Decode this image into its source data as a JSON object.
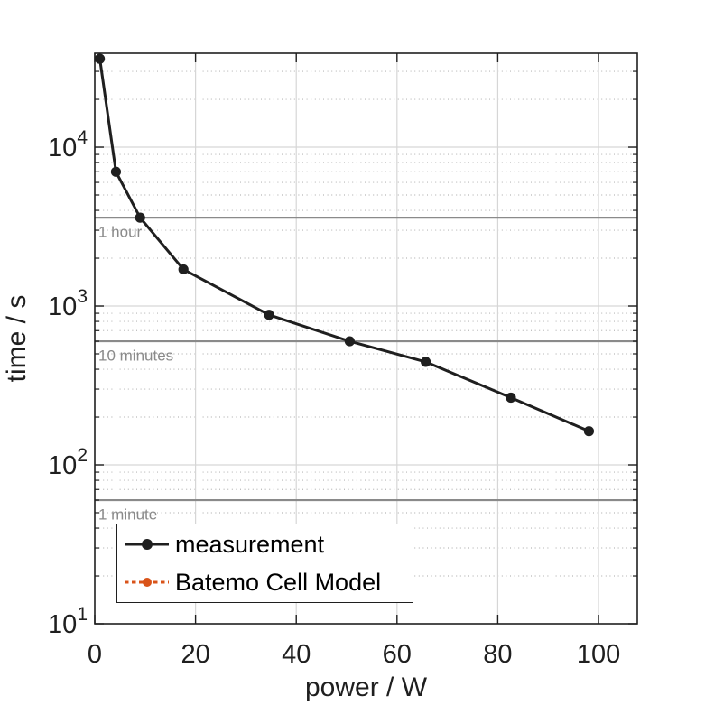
{
  "window": {
    "background": "#ffffff"
  },
  "axes": {
    "xlabel": "power / W",
    "ylabel": "time / s",
    "x_tick_labels": [
      "0",
      "20",
      "40",
      "60",
      "80",
      "100"
    ],
    "y_tick_labels": [
      {
        "mantissa": "10",
        "exponent": "1"
      },
      {
        "mantissa": "10",
        "exponent": "2"
      },
      {
        "mantissa": "10",
        "exponent": "3"
      },
      {
        "mantissa": "10",
        "exponent": "4"
      }
    ]
  },
  "legend": {
    "entries": [
      {
        "label": "measurement",
        "color": "#1f1f1f",
        "line_style": "solid",
        "marker": "filled-circle"
      },
      {
        "label": "Batemo Cell Model",
        "color": "#d95319",
        "line_style": "dotted",
        "marker": "filled-circle"
      }
    ]
  },
  "reference_lines": [
    {
      "label": "1 hour",
      "seconds": 3600
    },
    {
      "label": "10 minutes",
      "seconds": 600
    },
    {
      "label": "1 minute",
      "seconds": 60
    }
  ],
  "colors": {
    "series_measurement": "#1f1f1f",
    "series_model": "#d95319",
    "grid_major": "#d6d6d6",
    "grid_minor": "#b8b8b8",
    "reference_line": "#8a8a8a",
    "reference_text": "#8a8a8a",
    "axis_frame": "#1f1f1f",
    "tick_text": "#1f1f1f"
  },
  "chart_data": {
    "type": "line",
    "title": "",
    "xlabel": "power / W",
    "ylabel": "time / s",
    "x_scale": "linear",
    "y_scale": "log",
    "xlim": [
      0,
      107.7
    ],
    "ylim": [
      10,
      39000
    ],
    "x_ticks": [
      0,
      20,
      40,
      60,
      80,
      100
    ],
    "y_ticks": [
      10,
      100,
      1000,
      10000
    ],
    "grid": "major solid + log-minor dotted horizontal; major vertical",
    "legend_position": "inside lower-left",
    "series": [
      {
        "name": "measurement",
        "color": "#1f1f1f",
        "line": "solid",
        "marker": "circle",
        "points": [
          {
            "x": 1.0,
            "y": 36000
          },
          {
            "x": 4.2,
            "y": 7000
          },
          {
            "x": 9.0,
            "y": 3600
          },
          {
            "x": 17.6,
            "y": 1700
          },
          {
            "x": 34.6,
            "y": 880
          },
          {
            "x": 50.6,
            "y": 600
          },
          {
            "x": 65.7,
            "y": 445
          },
          {
            "x": 82.6,
            "y": 265
          },
          {
            "x": 98.1,
            "y": 163
          }
        ]
      },
      {
        "name": "Batemo Cell Model",
        "color": "#d95319",
        "line": "dotted",
        "marker": "circle",
        "points": []
      }
    ],
    "annotations": [
      {
        "text": "1 hour",
        "y": 3600
      },
      {
        "text": "10 minutes",
        "y": 600
      },
      {
        "text": "1 minute",
        "y": 60
      }
    ]
  }
}
